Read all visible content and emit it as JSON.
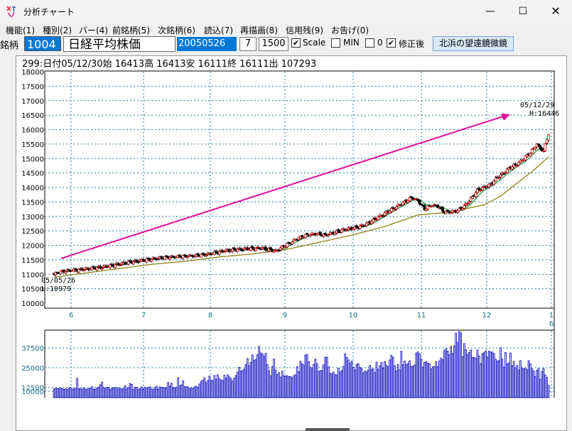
{
  "window": {
    "title": "分析チャート",
    "minimize": "—",
    "maximize": "☐",
    "close": "✕"
  },
  "menu": [
    "機能(1)",
    "種別(2)",
    "バー(4)",
    "前銘柄(5)",
    "次銘柄(6)",
    "読込(7)",
    "再描画(8)",
    "信用残(9)",
    "お告げ(0)"
  ],
  "toolbar": {
    "code_label": "銘柄",
    "code": "1004",
    "name": "日経平均株価",
    "date": "20050526",
    "period": "7",
    "count": "1500",
    "scale_label": "Scale",
    "scale_checked": true,
    "min_label": "MIN",
    "min_checked": false,
    "zero_label": "0",
    "zero_checked": false,
    "adjust_label": "修正後",
    "adjust_checked": true,
    "telescope_button": "北浜の望遠鏡微鏡"
  },
  "info": "299:日付05/12/30始 16413高 16413安 16111終 16111出 107293",
  "chart_data": {
    "type": "candlestick",
    "price_axis": {
      "min": 10000,
      "max": 18000,
      "ticks": [
        10000,
        10500,
        11000,
        11500,
        12000,
        12500,
        13000,
        13500,
        14000,
        14500,
        15000,
        15500,
        16000,
        16500,
        17000,
        17500,
        18000
      ]
    },
    "month_labels": [
      "6",
      "7",
      "8",
      "9",
      "10",
      "11",
      "12",
      "1"
    ],
    "year_label": "6",
    "close_path": [
      [
        0,
        11000
      ],
      [
        3,
        11080
      ],
      [
        8,
        11130
      ],
      [
        15,
        11150
      ],
      [
        22,
        11200
      ],
      [
        30,
        11250
      ],
      [
        38,
        11330
      ],
      [
        46,
        11420
      ],
      [
        54,
        11480
      ],
      [
        62,
        11550
      ],
      [
        70,
        11600
      ],
      [
        78,
        11620
      ],
      [
        86,
        11650
      ],
      [
        94,
        11700
      ],
      [
        102,
        11800
      ],
      [
        110,
        11850
      ],
      [
        118,
        11880
      ],
      [
        126,
        11900
      ],
      [
        134,
        11800
      ],
      [
        140,
        12000
      ],
      [
        146,
        12200
      ],
      [
        152,
        12350
      ],
      [
        158,
        12400
      ],
      [
        164,
        12350
      ],
      [
        170,
        12450
      ],
      [
        176,
        12550
      ],
      [
        182,
        12600
      ],
      [
        188,
        12700
      ],
      [
        194,
        12900
      ],
      [
        200,
        13100
      ],
      [
        206,
        13300
      ],
      [
        212,
        13500
      ],
      [
        216,
        13650
      ],
      [
        220,
        13550
      ],
      [
        224,
        13250
      ],
      [
        228,
        13400
      ],
      [
        232,
        13350
      ],
      [
        236,
        13150
      ],
      [
        240,
        13150
      ],
      [
        244,
        13200
      ],
      [
        248,
        13350
      ],
      [
        252,
        13600
      ],
      [
        256,
        13900
      ],
      [
        260,
        14000
      ],
      [
        264,
        14100
      ],
      [
        268,
        14350
      ],
      [
        272,
        14500
      ],
      [
        276,
        14700
      ],
      [
        280,
        14800
      ],
      [
        284,
        15000
      ],
      [
        288,
        15200
      ],
      [
        292,
        15500
      ],
      [
        294,
        15350
      ],
      [
        296,
        15250
      ],
      [
        298,
        15700
      ],
      [
        300,
        16000
      ],
      [
        302,
        16150
      ],
      [
        304,
        16300
      ],
      [
        305,
        16111
      ]
    ],
    "ma_path": [
      [
        0,
        10900
      ],
      [
        20,
        11050
      ],
      [
        40,
        11200
      ],
      [
        60,
        11350
      ],
      [
        80,
        11450
      ],
      [
        100,
        11600
      ],
      [
        120,
        11700
      ],
      [
        140,
        11850
      ],
      [
        160,
        12100
      ],
      [
        180,
        12350
      ],
      [
        200,
        12650
      ],
      [
        220,
        13050
      ],
      [
        240,
        13150
      ],
      [
        260,
        13400
      ],
      [
        270,
        13700
      ],
      [
        280,
        14150
      ],
      [
        290,
        14600
      ],
      [
        298,
        15000
      ],
      [
        305,
        15450
      ]
    ],
    "volume_axis": {
      "ticks": [
        10000,
        12500,
        25000,
        37500
      ],
      "tick_labels": [
        "10000",
        "12500",
        "25000",
        "37500"
      ]
    },
    "volume_bars": [
      11540,
      11830,
      11970,
      11650,
      12100,
      11780,
      11230,
      11650,
      10990,
      12150,
      12310,
      11460,
      11520,
      11880,
      18310,
      11720,
      11690,
      11390,
      12080,
      11290,
      11510,
      11610,
      12040,
      12900,
      11330,
      11380,
      12060,
      12690,
      14200,
      15850,
      12400,
      11640,
      12530,
      12460,
      11200,
      12050,
      11970,
      12460,
      11490,
      12330,
      11580,
      11530,
      11720,
      13530,
      11510,
      12440,
      15040,
      14360,
      11160,
      12550,
      12510,
      11180,
      11870,
      12840,
      11190,
      12590,
      11870,
      12440,
      12810,
      11450,
      11240,
      12470,
      13260,
      11380,
      12810,
      12330,
      12550,
      12090,
      11920,
      15660,
      13190,
      15140,
      12130,
      12360,
      12380,
      18670,
      13420,
      14010,
      16590,
      12940,
      12820,
      12790,
      11770,
      11980,
      11950,
      12890,
      13240,
      12300,
      14690,
      16330,
      17090,
      18660,
      15500,
      16840,
      19600,
      17090,
      16700,
      20080,
      17660,
      20410,
      17930,
      17150,
      16900,
      20180,
      18430,
      20480,
      19220,
      18120,
      16480,
      18370,
      20000,
      22250,
      25170,
      22780,
      23200,
      24040,
      27020,
      30820,
      26240,
      28380,
      33150,
      29560,
      30240,
      33200,
      38590,
      34400,
      33670,
      32200,
      34160,
      26960,
      23020,
      19900,
      25630,
      30550,
      23490,
      20630,
      21830,
      19000,
      22800,
      19820,
      19720,
      19900,
      19270,
      19380,
      18500,
      19930,
      20520,
      25600,
      22460,
      29040,
      27480,
      26650,
      33070,
      33460,
      28850,
      25400,
      24180,
      27050,
      30370,
      27540,
      22440,
      23230,
      23230,
      26800,
      31610,
      31700,
      25600,
      21410,
      21040,
      22230,
      20490,
      20470,
      24610,
      22200,
      23270,
      25780,
      33880,
      31480,
      29960,
      27830,
      29120,
      25080,
      23630,
      27120,
      27560,
      25180,
      24390,
      21560,
      22930,
      22210,
      23570,
      26430,
      23850,
      24270,
      21920,
      28530,
      24020,
      26410,
      28320,
      24790,
      28910,
      26570,
      25600,
      29990,
      32910,
      31690,
      26230,
      22870,
      27080,
      23640,
      35480,
      26810,
      29190,
      26920,
      27700,
      29300,
      25570,
      26040,
      26680,
      34280,
      35050,
      33780,
      30540,
      25400,
      28340,
      28940,
      27920,
      27450,
      24200,
      25600,
      25560,
      28900,
      25660,
      29250,
      31010,
      30030,
      35960,
      37150,
      35470,
      33240,
      38540,
      34070,
      38940,
      46960,
      40890,
      47950,
      47110,
      32050,
      40330,
      36430,
      33250,
      34700,
      36200,
      31460,
      31550,
      30840,
      36140,
      32440,
      27430,
      33980,
      34500,
      35580,
      31740,
      35510,
      34940,
      34970,
      33920,
      30430,
      29160,
      29460,
      37710,
      30430,
      25320,
      34660,
      27350,
      28040,
      34270,
      26330,
      28950,
      24880,
      26420,
      23530,
      29440,
      24920,
      24230,
      24590,
      23680,
      29460,
      27490,
      24240,
      22850,
      19370,
      23410,
      24400,
      17510,
      22620,
      24570,
      20430,
      18800,
      13800
    ]
  }
}
